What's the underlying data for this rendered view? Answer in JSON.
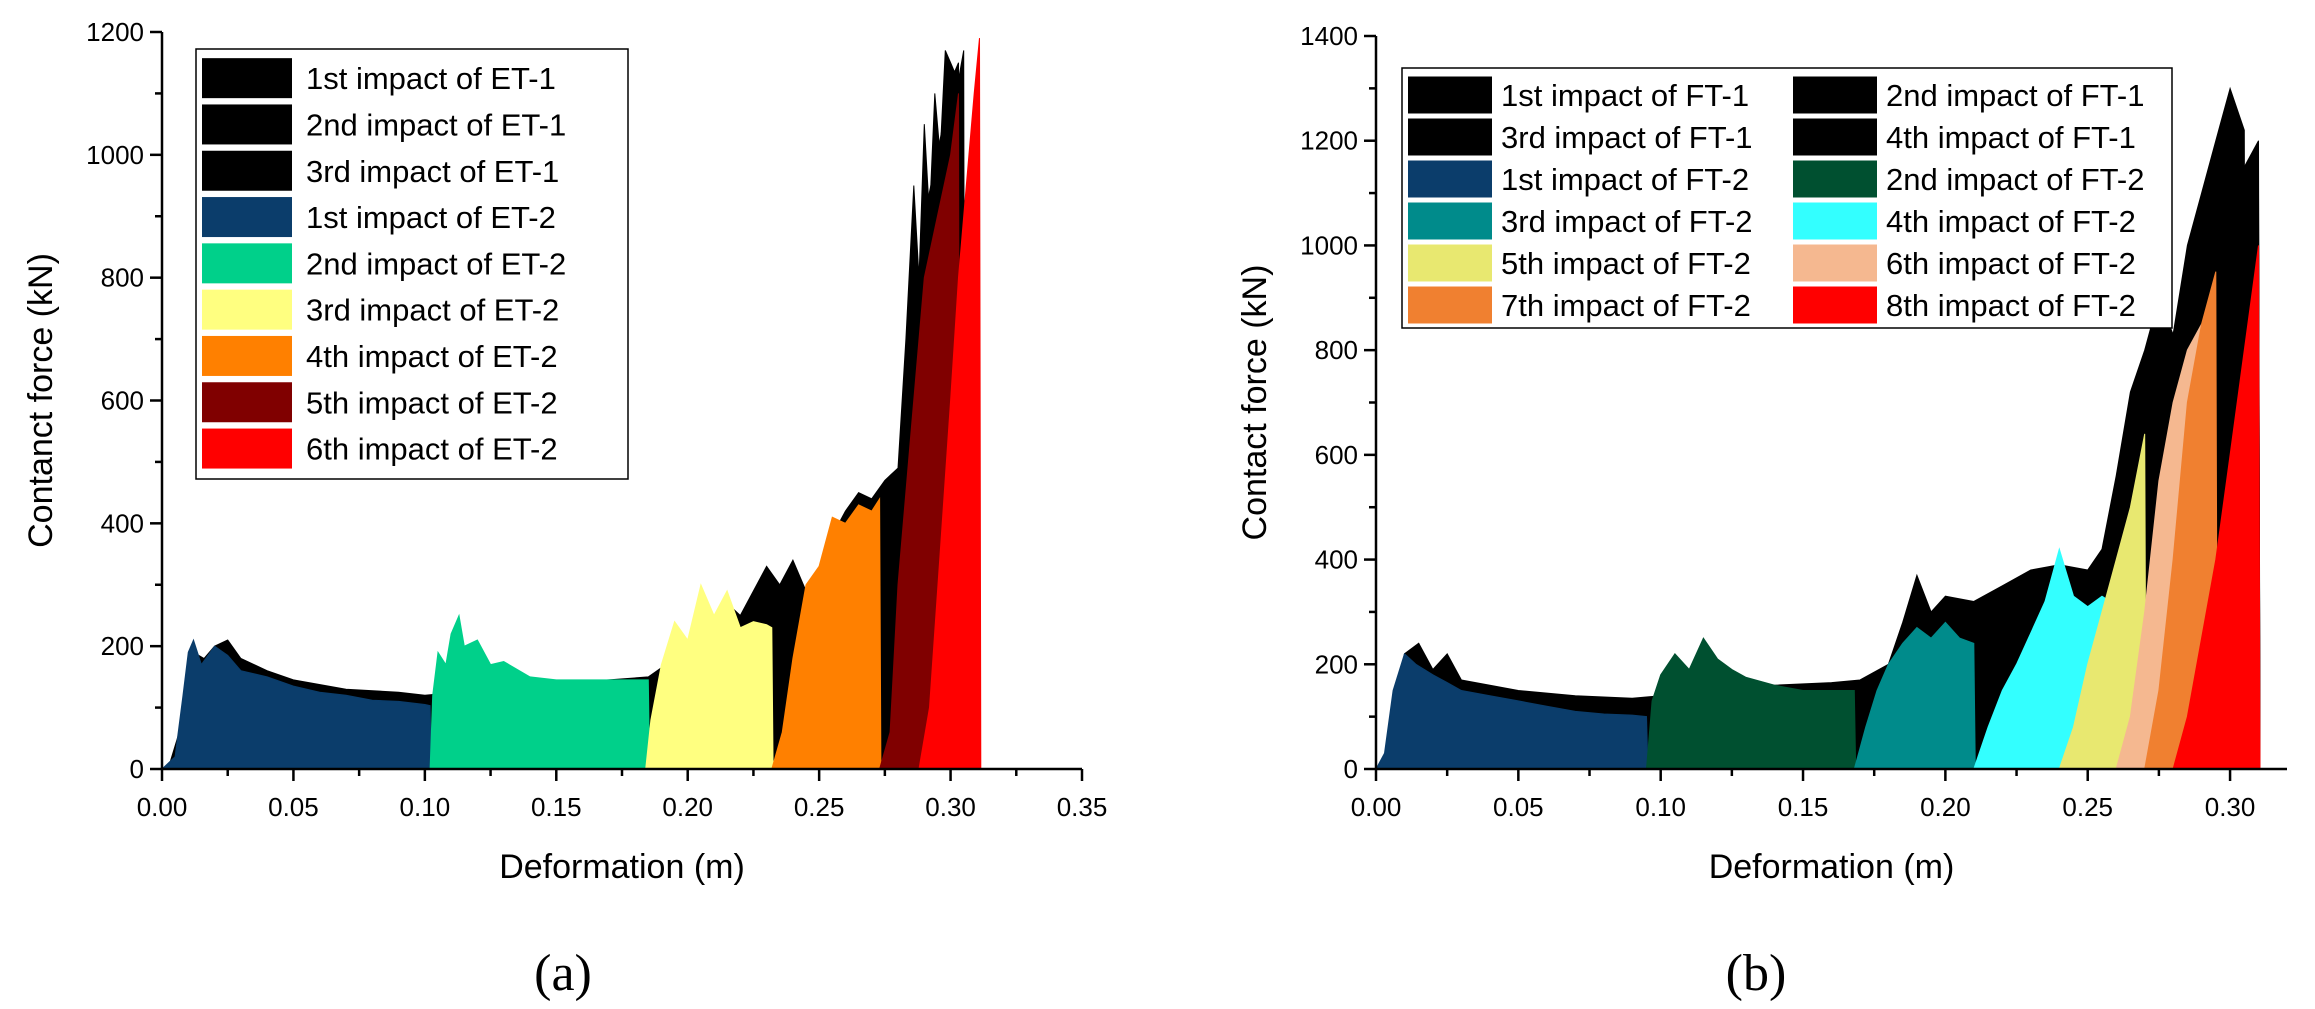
{
  "chart_data": [
    {
      "type": "area",
      "panel_label": "(a)",
      "xlabel": "Deformation (m)",
      "ylabel": "Contanct force (kN)",
      "xlim": [
        0.0,
        0.35
      ],
      "ylim": [
        0,
        1200
      ],
      "xticks": [
        "0.00",
        "0.05",
        "0.10",
        "0.15",
        "0.20",
        "0.25",
        "0.30",
        "0.35"
      ],
      "yticks": [
        "0",
        "200",
        "400",
        "600",
        "800",
        "1000",
        "1200"
      ],
      "legend_position": "top-left",
      "legend_columns": 1,
      "series": [
        {
          "name": "1st impact of ET-1",
          "color": "#000000",
          "x": [
            0.0,
            0.003,
            0.008,
            0.012,
            0.016,
            0.02,
            0.025,
            0.03,
            0.04,
            0.05,
            0.07,
            0.09,
            0.1,
            0.12,
            0.15,
            0.17,
            0.185,
            0.19,
            0.2,
            0.205,
            0.21,
            0.215,
            0.22,
            0.23,
            0.235,
            0.24,
            0.245,
            0.25,
            0.255,
            0.26,
            0.265,
            0.27,
            0.275,
            0.28,
            0.283,
            0.286,
            0.288,
            0.29,
            0.292,
            0.294,
            0.296,
            0.298,
            0.3,
            0.302,
            0.3025
          ],
          "y": [
            0,
            10,
            80,
            190,
            180,
            200,
            210,
            180,
            160,
            145,
            130,
            125,
            120,
            128,
            140,
            145,
            150,
            165,
            175,
            220,
            230,
            270,
            250,
            330,
            300,
            340,
            290,
            320,
            380,
            420,
            450,
            440,
            470,
            490,
            700,
            950,
            800,
            1050,
            900,
            1100,
            1000,
            1170,
            1150,
            1130,
            0
          ]
        },
        {
          "name": "2nd impact of ET-1",
          "color": "#000000",
          "x": [
            0.275,
            0.28,
            0.285,
            0.29,
            0.295,
            0.3,
            0.303,
            0.3035
          ],
          "y": [
            0,
            180,
            500,
            900,
            1000,
            1120,
            1150,
            0
          ]
        },
        {
          "name": "3rd impact of ET-1",
          "color": "#000000",
          "x": [
            0.28,
            0.285,
            0.29,
            0.295,
            0.3,
            0.305,
            0.3055
          ],
          "y": [
            0,
            250,
            650,
            900,
            1050,
            1170,
            0
          ]
        },
        {
          "name": "1st impact of ET-2",
          "color": "#0b3d6b",
          "x": [
            0.0,
            0.005,
            0.008,
            0.01,
            0.012,
            0.015,
            0.02,
            0.025,
            0.03,
            0.04,
            0.05,
            0.06,
            0.07,
            0.08,
            0.09,
            0.1,
            0.102,
            0.1025
          ],
          "y": [
            0,
            20,
            120,
            190,
            210,
            170,
            200,
            185,
            160,
            150,
            135,
            125,
            120,
            112,
            110,
            105,
            103,
            0
          ]
        },
        {
          "name": "2nd impact of ET-2",
          "color": "#00d08a",
          "x": [
            0.102,
            0.103,
            0.105,
            0.108,
            0.11,
            0.113,
            0.115,
            0.12,
            0.125,
            0.13,
            0.14,
            0.15,
            0.16,
            0.17,
            0.18,
            0.185,
            0.1855
          ],
          "y": [
            0,
            120,
            190,
            170,
            220,
            250,
            200,
            210,
            170,
            175,
            150,
            145,
            145,
            145,
            145,
            145,
            0
          ]
        },
        {
          "name": "3rd impact of ET-2",
          "color": "#ffff80",
          "x": [
            0.184,
            0.186,
            0.19,
            0.195,
            0.2,
            0.205,
            0.21,
            0.215,
            0.22,
            0.225,
            0.23,
            0.232,
            0.2325
          ],
          "y": [
            0,
            80,
            170,
            240,
            210,
            300,
            250,
            290,
            230,
            240,
            235,
            230,
            0
          ]
        },
        {
          "name": "4th impact of ET-2",
          "color": "#ff8000",
          "x": [
            0.232,
            0.236,
            0.24,
            0.245,
            0.25,
            0.255,
            0.26,
            0.265,
            0.27,
            0.273,
            0.2735
          ],
          "y": [
            0,
            60,
            180,
            300,
            330,
            410,
            400,
            430,
            420,
            440,
            0
          ]
        },
        {
          "name": "5th impact of ET-2",
          "color": "#800000",
          "x": [
            0.273,
            0.277,
            0.28,
            0.285,
            0.29,
            0.295,
            0.3,
            0.303,
            0.3035
          ],
          "y": [
            0,
            60,
            300,
            550,
            800,
            900,
            1000,
            1100,
            0
          ]
        },
        {
          "name": "6th impact of ET-2",
          "color": "#ff0000",
          "x": [
            0.288,
            0.292,
            0.296,
            0.3,
            0.303,
            0.306,
            0.309,
            0.311,
            0.3115
          ],
          "y": [
            0,
            100,
            350,
            600,
            800,
            950,
            1100,
            1190,
            0
          ]
        }
      ]
    },
    {
      "type": "area",
      "panel_label": "(b)",
      "xlabel": "Deformation (m)",
      "ylabel": "Contact force (kN)",
      "xlim": [
        0.0,
        0.32
      ],
      "ylim": [
        0,
        1400
      ],
      "xticks": [
        "0.00",
        "0.05",
        "0.10",
        "0.15",
        "0.20",
        "0.25",
        "0.30"
      ],
      "yticks": [
        "0",
        "200",
        "400",
        "600",
        "800",
        "1000",
        "1200",
        "1400"
      ],
      "legend_position": "top-left",
      "legend_columns": 2,
      "series": [
        {
          "name": "1st impact of FT-1",
          "color": "#000000",
          "x": [
            0.0,
            0.003,
            0.006,
            0.01,
            0.015,
            0.02,
            0.025,
            0.03,
            0.04,
            0.05,
            0.07,
            0.09,
            0.1,
            0.12,
            0.14,
            0.16,
            0.17,
            0.18,
            0.185,
            0.19,
            0.195,
            0.2,
            0.21,
            0.22,
            0.23,
            0.24,
            0.25,
            0.255,
            0.26,
            0.265,
            0.27,
            0.275,
            0.28,
            0.285,
            0.29,
            0.295,
            0.3,
            0.305,
            0.3055
          ],
          "y": [
            0,
            20,
            120,
            220,
            240,
            190,
            220,
            170,
            160,
            150,
            140,
            135,
            140,
            150,
            160,
            165,
            170,
            200,
            280,
            370,
            300,
            330,
            320,
            350,
            380,
            390,
            380,
            420,
            560,
            720,
            800,
            900,
            830,
            1000,
            1100,
            1200,
            1300,
            1220,
            0
          ]
        },
        {
          "name": "2nd impact of FT-1",
          "color": "#000000",
          "x": [
            0.27,
            0.28,
            0.29,
            0.3,
            0.305,
            0.31,
            0.3105
          ],
          "y": [
            0,
            200,
            600,
            950,
            1150,
            1200,
            0
          ]
        },
        {
          "name": "3rd impact of FT-1",
          "color": "#000000",
          "x": [
            0.28,
            0.29,
            0.295,
            0.3,
            0.305,
            0.31,
            0.3105
          ],
          "y": [
            0,
            300,
            700,
            1000,
            1150,
            1100,
            0
          ]
        },
        {
          "name": "4th impact of FT-1",
          "color": "#000000",
          "x": [
            0.285,
            0.29,
            0.295,
            0.3,
            0.305,
            0.31,
            0.3105
          ],
          "y": [
            0,
            250,
            600,
            950,
            1100,
            1050,
            0
          ]
        },
        {
          "name": "1st impact of FT-2",
          "color": "#0b3d6b",
          "x": [
            0.0,
            0.003,
            0.006,
            0.01,
            0.014,
            0.02,
            0.025,
            0.03,
            0.04,
            0.05,
            0.06,
            0.07,
            0.08,
            0.09,
            0.095,
            0.0955
          ],
          "y": [
            0,
            30,
            150,
            220,
            200,
            180,
            165,
            150,
            140,
            130,
            120,
            110,
            105,
            103,
            100,
            0
          ]
        },
        {
          "name": "2nd impact of FT-2",
          "color": "#005030",
          "x": [
            0.095,
            0.097,
            0.1,
            0.105,
            0.11,
            0.115,
            0.12,
            0.125,
            0.13,
            0.14,
            0.15,
            0.16,
            0.168,
            0.1685
          ],
          "y": [
            0,
            130,
            180,
            220,
            190,
            250,
            210,
            190,
            175,
            160,
            150,
            150,
            150,
            0
          ]
        },
        {
          "name": "3rd impact of FT-2",
          "color": "#008b8b",
          "x": [
            0.168,
            0.172,
            0.176,
            0.18,
            0.185,
            0.19,
            0.195,
            0.2,
            0.205,
            0.21,
            0.2105
          ],
          "y": [
            0,
            80,
            150,
            200,
            240,
            270,
            250,
            280,
            250,
            240,
            0
          ]
        },
        {
          "name": "4th impact of FT-2",
          "color": "#33ffff",
          "x": [
            0.21,
            0.215,
            0.22,
            0.225,
            0.23,
            0.235,
            0.24,
            0.245,
            0.25,
            0.255,
            0.258,
            0.2585
          ],
          "y": [
            0,
            80,
            150,
            200,
            260,
            320,
            420,
            330,
            310,
            330,
            320,
            0
          ]
        },
        {
          "name": "5th impact of FT-2",
          "color": "#e8e870",
          "x": [
            0.24,
            0.245,
            0.25,
            0.255,
            0.26,
            0.265,
            0.27,
            0.2705
          ],
          "y": [
            0,
            80,
            200,
            300,
            400,
            500,
            640,
            0
          ]
        },
        {
          "name": "6th impact of FT-2",
          "color": "#f5b890",
          "x": [
            0.26,
            0.265,
            0.27,
            0.275,
            0.28,
            0.285,
            0.29,
            0.2905
          ],
          "y": [
            0,
            100,
            300,
            550,
            700,
            800,
            850,
            0
          ]
        },
        {
          "name": "7th impact of FT-2",
          "color": "#f08030",
          "x": [
            0.27,
            0.275,
            0.28,
            0.285,
            0.29,
            0.295,
            0.2955
          ],
          "y": [
            0,
            150,
            400,
            700,
            850,
            950,
            0
          ]
        },
        {
          "name": "8th impact of FT-2",
          "color": "#ff0000",
          "x": [
            0.28,
            0.285,
            0.29,
            0.295,
            0.3,
            0.305,
            0.31,
            0.3105
          ],
          "y": [
            0,
            100,
            250,
            400,
            600,
            800,
            1000,
            0
          ]
        }
      ]
    }
  ]
}
